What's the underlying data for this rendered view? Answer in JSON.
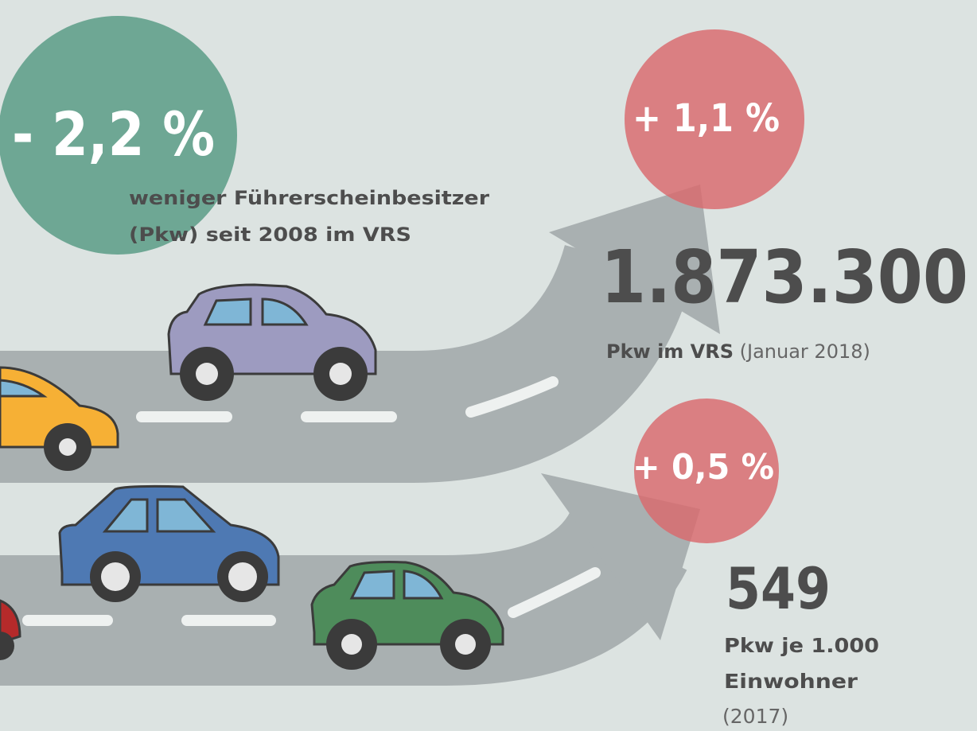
{
  "license_stat": {
    "value": "- 2,2 %",
    "description": [
      "weniger Führerscheinbesitzer",
      "(Pkw) seit 2008 im VRS"
    ]
  },
  "car_stat": {
    "change": "+ 1,1 %",
    "value": "1.873.300",
    "label_bold": "Pkw im VRS",
    "label_note": "(Januar 2018)"
  },
  "density_stat": {
    "change": "+ 0,5 %",
    "value": "549",
    "label_bold": [
      "Pkw je 1.000",
      "Einwohner"
    ],
    "label_note": "(2017)"
  }
}
